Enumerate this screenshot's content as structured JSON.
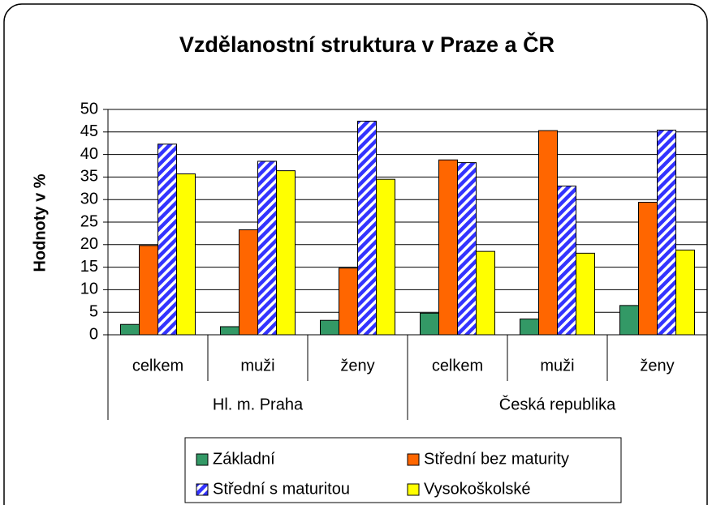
{
  "chart_data": {
    "type": "bar",
    "title": "Vzdělanostní struktura  v Praze a ČR",
    "y_label": "Hodnoty v %",
    "categories": [
      "celkem",
      "muži",
      "ženy",
      "celkem",
      "muži",
      "ženy"
    ],
    "groups": [
      "Hl. m. Praha",
      "Česká republika"
    ],
    "series": [
      {
        "name": "Základní",
        "color": "#339966",
        "values": [
          2.3,
          1.8,
          3.2,
          4.8,
          3.5,
          6.5
        ]
      },
      {
        "name": "Střední bez maturity",
        "color": "#ff6600",
        "values": [
          19.8,
          23.3,
          14.8,
          38.8,
          45.3,
          29.4
        ]
      },
      {
        "name": "Střední s maturitou",
        "color": "#3333ff",
        "hatch": true,
        "values": [
          42.3,
          38.5,
          47.4,
          38.2,
          33.0,
          45.4
        ]
      },
      {
        "name": "Vysokoškolské",
        "color": "#ffff00",
        "values": [
          35.7,
          36.4,
          34.5,
          18.5,
          18.1,
          18.8
        ]
      }
    ],
    "ylim": [
      0,
      50
    ],
    "yticks": [
      0,
      5,
      10,
      15,
      20,
      25,
      30,
      35,
      40,
      45,
      50
    ],
    "grid": true
  }
}
